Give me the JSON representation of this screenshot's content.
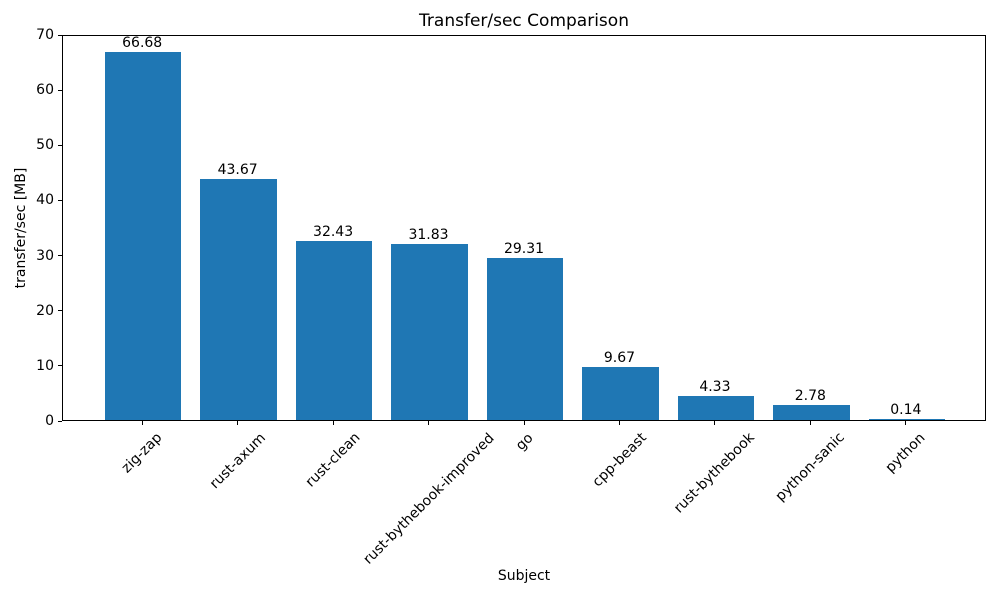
{
  "chart_data": {
    "type": "bar",
    "title": "Transfer/sec Comparison",
    "xlabel": "Subject",
    "ylabel": "transfer/sec [MB]",
    "categories": [
      "zig-zap",
      "rust-axum",
      "rust-clean",
      "rust-bythebook-improved",
      "go",
      "cpp-beast",
      "rust-bythebook",
      "python-sanic",
      "python"
    ],
    "values": [
      66.68,
      43.67,
      32.43,
      31.83,
      29.31,
      9.67,
      4.33,
      2.78,
      0.14
    ],
    "value_labels": [
      "66.68",
      "43.67",
      "32.43",
      "31.83",
      "29.31",
      "9.67",
      "4.33",
      "2.78",
      "0.14"
    ],
    "ylim": [
      0,
      70
    ],
    "yticks": [
      0,
      10,
      20,
      30,
      40,
      50,
      60,
      70
    ],
    "bar_color": "#1f77b4",
    "x_tick_rotation_deg": 45,
    "grid": false,
    "legend_position": "none"
  }
}
